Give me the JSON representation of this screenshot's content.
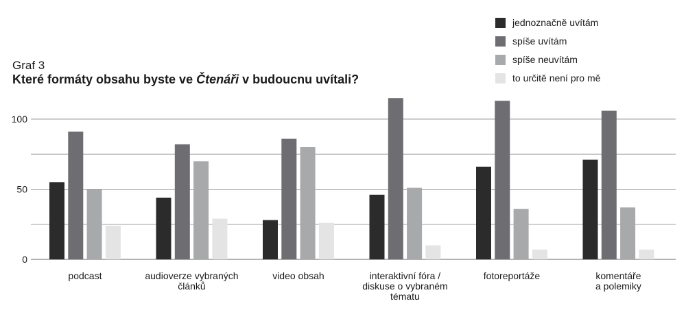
{
  "graf_label": "Graf 3",
  "title": {
    "before": "Které formáty obsahu byste ve ",
    "italic": "Čtenáři",
    "after": " v budoucnu uvítali?"
  },
  "chart_data": {
    "type": "bar",
    "categories": [
      [
        "podcast"
      ],
      [
        "audioverze vybraných",
        "článků"
      ],
      [
        "video obsah"
      ],
      [
        "interaktivní fóra /",
        "diskuse o vybraném",
        "tématu"
      ],
      [
        "fotoreportáže"
      ],
      [
        "komentáře",
        "a polemiky"
      ]
    ],
    "series": [
      {
        "name": "jednoznačně uvítám",
        "color": "#2b2b2b",
        "values": [
          55,
          44,
          28,
          46,
          66,
          71
        ]
      },
      {
        "name": "spíše uvítám",
        "color": "#6e6e72",
        "values": [
          91,
          82,
          86,
          115,
          113,
          106
        ]
      },
      {
        "name": "spíše neuvítám",
        "color": "#a8a9ab",
        "values": [
          50,
          70,
          80,
          51,
          36,
          37
        ]
      },
      {
        "name": "to určitě není pro mě",
        "color": "#e4e4e5",
        "values": [
          24,
          29,
          26,
          10,
          7,
          7
        ]
      }
    ],
    "ylim": [
      0,
      120
    ],
    "yticks": [
      0,
      50,
      100
    ],
    "grid": true,
    "legend_position": "top-right"
  }
}
